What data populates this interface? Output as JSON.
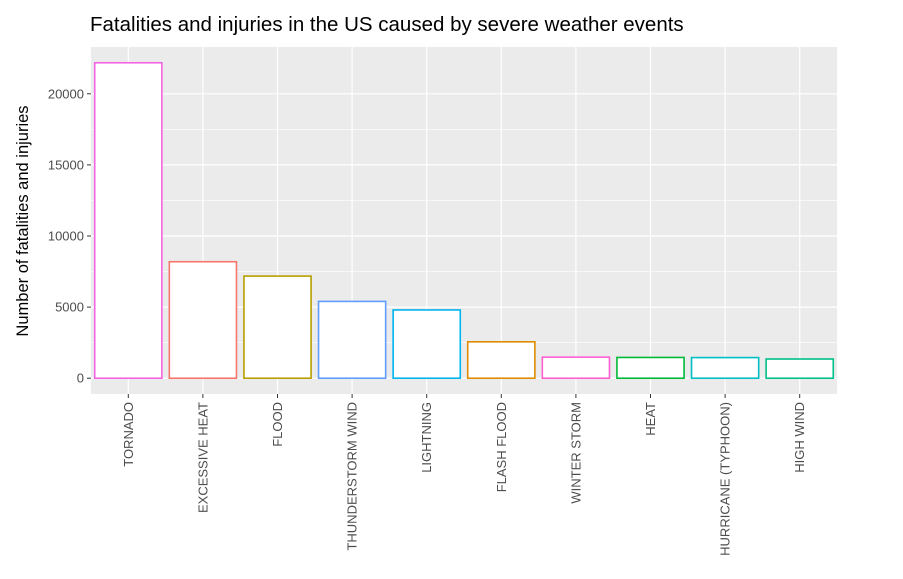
{
  "chart_data": {
    "type": "bar",
    "title": "Fatalities and injuries in the US caused by severe weather events",
    "xlabel": "",
    "ylabel": "Number of fatalities and injuries",
    "categories": [
      "TORNADO",
      "EXCESSIVE HEAT",
      "FLOOD",
      "THUNDERSTORM WIND",
      "LIGHTNING",
      "FLASH FLOOD",
      "WINTER STORM",
      "HEAT",
      "HURRICANE (TYPHOON)",
      "HIGH WIND"
    ],
    "values": [
      22180,
      8190,
      7180,
      5400,
      4800,
      2560,
      1480,
      1460,
      1450,
      1350
    ],
    "colors": [
      "#f564e3",
      "#f8766d",
      "#b79f00",
      "#619cff",
      "#00b4f0",
      "#de8c00",
      "#fd61d1",
      "#00ba38",
      "#00bfc4",
      "#00c08b"
    ],
    "yticks": [
      0,
      5000,
      10000,
      15000,
      20000
    ],
    "ylim": [
      -1110,
      23290
    ],
    "grid": true,
    "background": "#ebebeb",
    "gridline_color": "#ffffff",
    "bar_fill": "#ffffff"
  }
}
